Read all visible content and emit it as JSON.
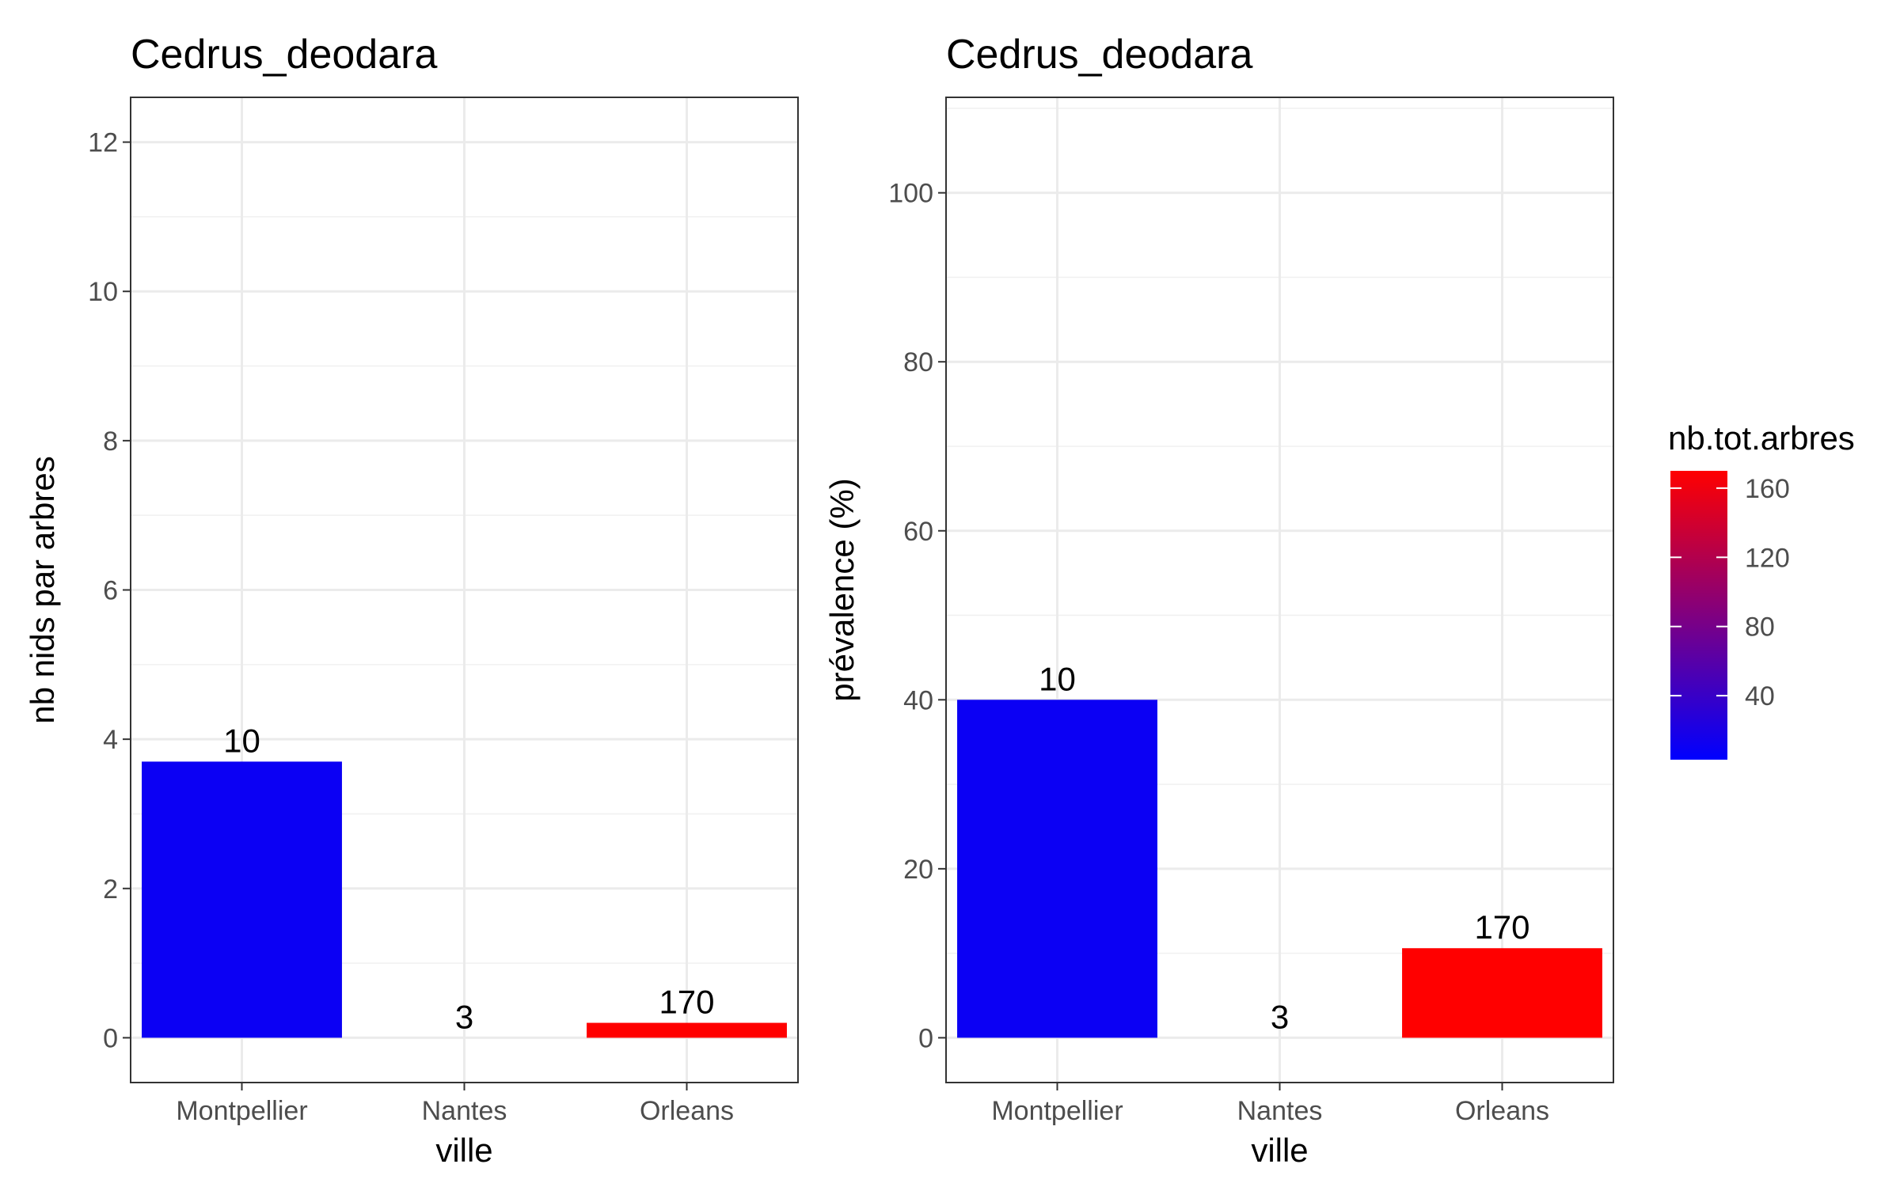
{
  "chart_data": [
    {
      "type": "bar",
      "title": "Cedrus_deodara",
      "xlabel": "ville",
      "ylabel": "nb nids par arbres",
      "categories": [
        "Montpellier",
        "Nantes",
        "Orleans"
      ],
      "values": [
        3.7,
        0,
        0.2
      ],
      "labels": [
        "10",
        "3",
        "170"
      ],
      "fill_values": [
        10,
        3,
        170
      ],
      "ylim": [
        -0.6,
        12.6
      ],
      "yticks": [
        0,
        2,
        4,
        6,
        8,
        10,
        12
      ],
      "grid": true
    },
    {
      "type": "bar",
      "title": "Cedrus_deodara",
      "xlabel": "ville",
      "ylabel": "prévalence (%)",
      "categories": [
        "Montpellier",
        "Nantes",
        "Orleans"
      ],
      "values": [
        40,
        0,
        10.6
      ],
      "labels": [
        "10",
        "3",
        "170"
      ],
      "fill_values": [
        10,
        3,
        170
      ],
      "ylim": [
        -5.3,
        111.3
      ],
      "yticks": [
        0,
        20,
        40,
        60,
        80,
        100
      ],
      "grid": true
    }
  ],
  "legend": {
    "title": "nb.tot.arbres",
    "breaks": [
      40,
      80,
      120,
      160
    ],
    "range": [
      3,
      170
    ],
    "low_color": "#0000FF",
    "high_color": "#FF0000",
    "placement": "right"
  }
}
